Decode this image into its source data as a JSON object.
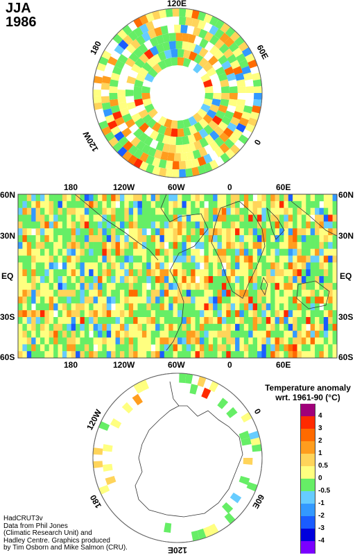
{
  "header": {
    "season": "JJA",
    "year": "1986"
  },
  "north_polar_map": {
    "labels": {
      "top": "120E",
      "upper_right": "60E",
      "right": "0",
      "upper_left": "180",
      "lower_left": "120W"
    }
  },
  "mid_map": {
    "lon_labels": [
      "180",
      "120W",
      "60W",
      "0",
      "60E"
    ],
    "lat_labels": [
      "60N",
      "30N",
      "EQ",
      "30S",
      "60S"
    ]
  },
  "south_polar_map": {
    "labels": {
      "left": "120W",
      "right": "0",
      "lower_left": "180",
      "lower_right": "60E",
      "bottom": "120E"
    }
  },
  "legend": {
    "title_line1": "Temperature anomaly",
    "title_line2": "wrt. 1961-90  (°C)",
    "levels": [
      "4",
      "3",
      "2",
      "1",
      "0.5",
      "0",
      "-0.5",
      "-1",
      "-2",
      "-3",
      "-4"
    ],
    "colors": [
      "#a0007a",
      "#ff2a00",
      "#ff6a00",
      "#ff9d1e",
      "#ffd45a",
      "#ffff80",
      "#66ee66",
      "#66ccff",
      "#3399ff",
      "#1a5cff",
      "#0000dd",
      "#7a00ff"
    ]
  },
  "credits": [
    "HadCRUT3v",
    "Data from Phil Jones",
    "(Climatic Research Unit) and",
    "Hadley Centre.  Graphics produced",
    "by Tim Osborn and Mike Salmon (CRU)."
  ]
}
